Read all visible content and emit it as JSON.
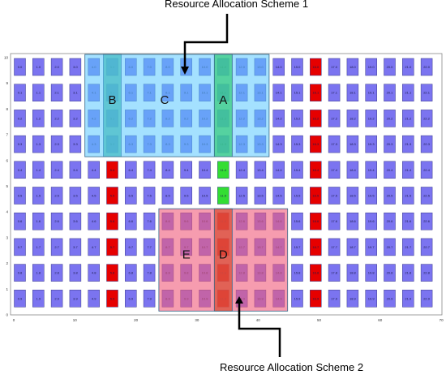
{
  "titles": {
    "scheme1": "Resource Allocation Scheme 1",
    "scheme2": "Resource Allocation Scheme 2"
  },
  "axes": {
    "x_ticks": [
      "0",
      "10",
      "20",
      "30",
      "40",
      "50",
      "60",
      "70"
    ],
    "y_ticks": [
      "0",
      "1",
      "2",
      "3",
      "4",
      "5",
      "6",
      "7",
      "8",
      "9",
      "10"
    ]
  },
  "grid": {
    "columns": 23,
    "rows": 10,
    "columns_x": [
      1.5,
      4.5,
      7.5,
      10.5,
      13.5,
      16.5,
      19.5,
      22.5,
      25.5,
      28.5,
      31.5,
      34.5,
      37.5,
      40.5,
      43.5,
      46.5,
      49.5,
      52.5,
      55.5,
      58.5,
      61.5,
      64.5,
      67.5
    ],
    "row_labels_top_to_bottom": [
      "0",
      "1",
      "2",
      "3",
      "4",
      "5",
      "6",
      "7",
      "8",
      "9"
    ],
    "label_pattern": "column.row"
  },
  "cell_colors": {
    "default": "#7b74f0",
    "red": "#e60000",
    "green": "#33dd33"
  },
  "red_cells": [
    [
      5,
      4
    ],
    [
      5,
      5
    ],
    [
      5,
      6
    ],
    [
      5,
      7
    ],
    [
      5,
      8
    ],
    [
      5,
      9
    ],
    [
      11,
      6
    ],
    [
      11,
      7
    ],
    [
      11,
      8
    ],
    [
      11,
      9
    ],
    [
      16,
      0
    ],
    [
      16,
      1
    ],
    [
      16,
      2
    ],
    [
      16,
      3
    ],
    [
      16,
      4
    ],
    [
      16,
      5
    ],
    [
      16,
      6
    ],
    [
      16,
      7
    ],
    [
      16,
      8
    ],
    [
      16,
      9
    ]
  ],
  "green_cells": [
    [
      11,
      4
    ],
    [
      11,
      5
    ]
  ],
  "regions": [
    {
      "label": "B",
      "color": "#33b080",
      "opacity": 0.75,
      "cols": [
        5,
        5
      ],
      "rows": [
        0,
        3
      ]
    },
    {
      "label": "C",
      "color": "#5ac8ff",
      "opacity": 0.55,
      "cols": [
        4,
        13
      ],
      "rows": [
        0,
        3
      ]
    },
    {
      "label": "A",
      "color": "#33cc77",
      "opacity": 0.7,
      "cols": [
        11,
        11
      ],
      "rows": [
        0,
        3
      ]
    },
    {
      "label": "E",
      "color": "#f05a7a",
      "opacity": 0.6,
      "cols": [
        8,
        14
      ],
      "rows": [
        6,
        9
      ]
    },
    {
      "label": "D",
      "color": "#d84a30",
      "opacity": 0.7,
      "cols": [
        11,
        11
      ],
      "rows": [
        6,
        9
      ]
    }
  ]
}
